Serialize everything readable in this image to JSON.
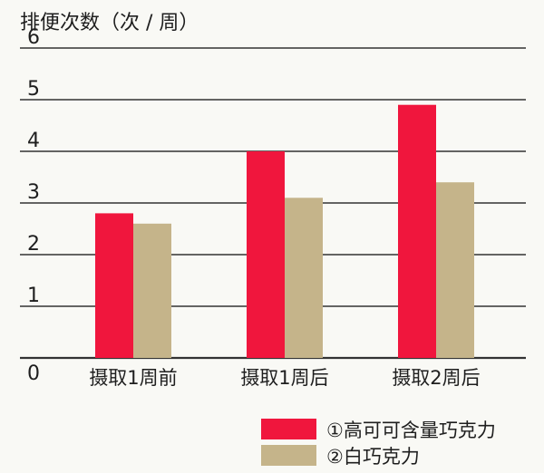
{
  "chart_data": {
    "type": "bar",
    "title": "",
    "ylabel": "排便次数（次 / 周）",
    "xlabel": "",
    "ylim": [
      0,
      6
    ],
    "yticks": [
      0,
      1,
      2,
      3,
      4,
      5,
      6
    ],
    "grid": true,
    "categories": [
      "摄取1周前",
      "摄取1周后",
      "摄取2周后"
    ],
    "series": [
      {
        "name": "①高可可含量巧克力",
        "color": "#f0163d",
        "values": [
          2.8,
          4.0,
          4.9
        ]
      },
      {
        "name": "②白巧克力",
        "color": "#c5b48a",
        "values": [
          2.6,
          3.1,
          3.4
        ]
      }
    ],
    "legend_position": "bottom-right"
  }
}
